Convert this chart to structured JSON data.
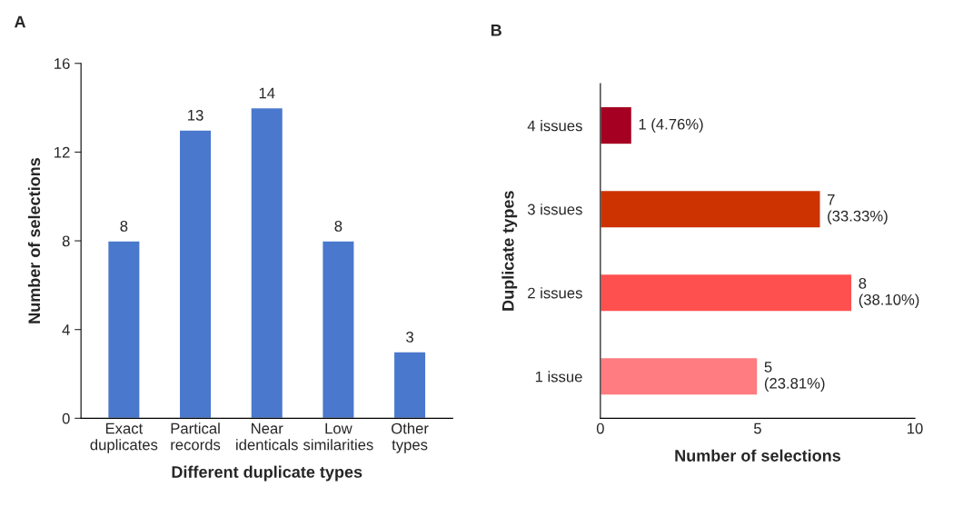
{
  "chart_data": [
    {
      "type": "bar",
      "title": "A",
      "xlabel": "Different duplicate types",
      "ylabel": "Number of selections",
      "categories": [
        "Exact\nduplicates",
        "Partical\nrecords",
        "Near\nidenticals",
        "Low\nsimilarities",
        "Other\ntypes"
      ],
      "values": [
        8,
        13,
        14,
        8,
        3
      ],
      "color": "#4a78cc",
      "ylim": [
        0,
        16
      ],
      "yticks": [
        0,
        4,
        8,
        12,
        16
      ],
      "data_labels": true
    },
    {
      "type": "bar",
      "orientation": "horizontal",
      "title": "B",
      "xlabel": "Number of selections",
      "ylabel": "Duplicate types",
      "categories": [
        "4 issues",
        "3 issues",
        "2 issues",
        "1 issue"
      ],
      "values": [
        1,
        7,
        8,
        5
      ],
      "colors": [
        "#a50021",
        "#cc3300",
        "#ff5050",
        "#ff7c80"
      ],
      "value_labels": [
        "1 (4.76%)",
        "7\n(33.33%)",
        "8\n(38.10%)",
        "5\n(23.81%)"
      ],
      "xlim": [
        0,
        10
      ],
      "xticks": [
        0,
        5,
        10
      ]
    }
  ]
}
